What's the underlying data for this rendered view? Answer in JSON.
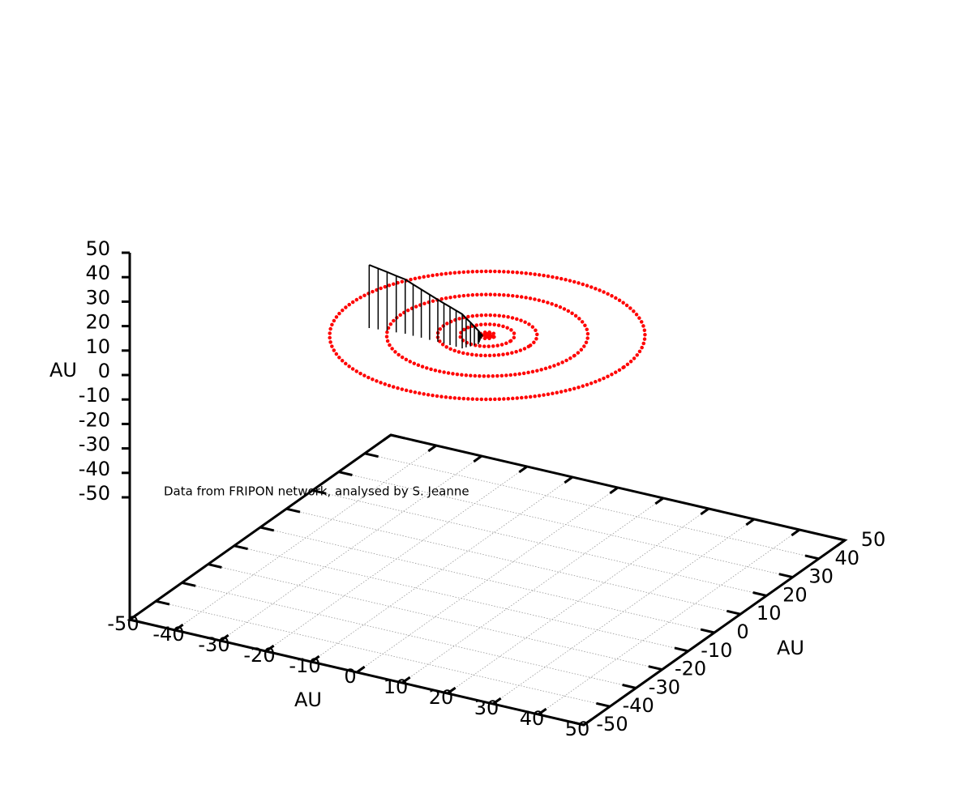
{
  "chart_data": {
    "type": "line3d",
    "xlabel": "AU",
    "ylabel": "AU",
    "zlabel": "AU",
    "annotation": "Data from FRIPON network, analysed by S. Jeanne",
    "xlim": [
      -50,
      50
    ],
    "ylim": [
      -50,
      50
    ],
    "zlim": [
      -50,
      50
    ],
    "xticks": [
      -50,
      -40,
      -30,
      -20,
      -10,
      0,
      10,
      20,
      30,
      40,
      50
    ],
    "yticks": [
      -50,
      -40,
      -30,
      -20,
      -10,
      0,
      10,
      20,
      30,
      40,
      50
    ],
    "zticks": [
      -50,
      -40,
      -30,
      -20,
      -10,
      0,
      10,
      20,
      30,
      40,
      50
    ],
    "grid": true,
    "orbits": {
      "color": "#ff0000",
      "radii": [
        30.1,
        19.2,
        9.5,
        5.2,
        1.5,
        1.0,
        0.7,
        0.4
      ]
    },
    "trajectory": {
      "color": "#000000",
      "style": "impulses",
      "x": [
        -21.3,
        -19.5,
        -17.7,
        -15.8,
        -14.0,
        -12.2,
        -10.4,
        -8.5,
        -6.7,
        -5.3,
        -3.9,
        -2.5,
        -1.1,
        -0.7,
        -0.2,
        0.2,
        0.6,
        0.3,
        0.0,
        -0.3,
        -0.5
      ],
      "y": [
        -8.2,
        -7.9,
        -7.6,
        -7.4,
        -7.1,
        -7.2,
        -7.2,
        -7.3,
        -7.3,
        -7.4,
        -7.5,
        -7.6,
        -7.7,
        -6.9,
        -6.1,
        -5.3,
        -4.5,
        -3.6,
        -2.8,
        -1.9,
        -1.0
      ],
      "z": [
        25.8,
        24.9,
        24.0,
        23.1,
        22.2,
        21.0,
        19.7,
        18.5,
        17.2,
        16.4,
        15.6,
        14.8,
        14.0,
        11.9,
        9.8,
        7.7,
        5.6,
        4.3,
        3.1,
        1.8,
        0.5
      ]
    }
  }
}
